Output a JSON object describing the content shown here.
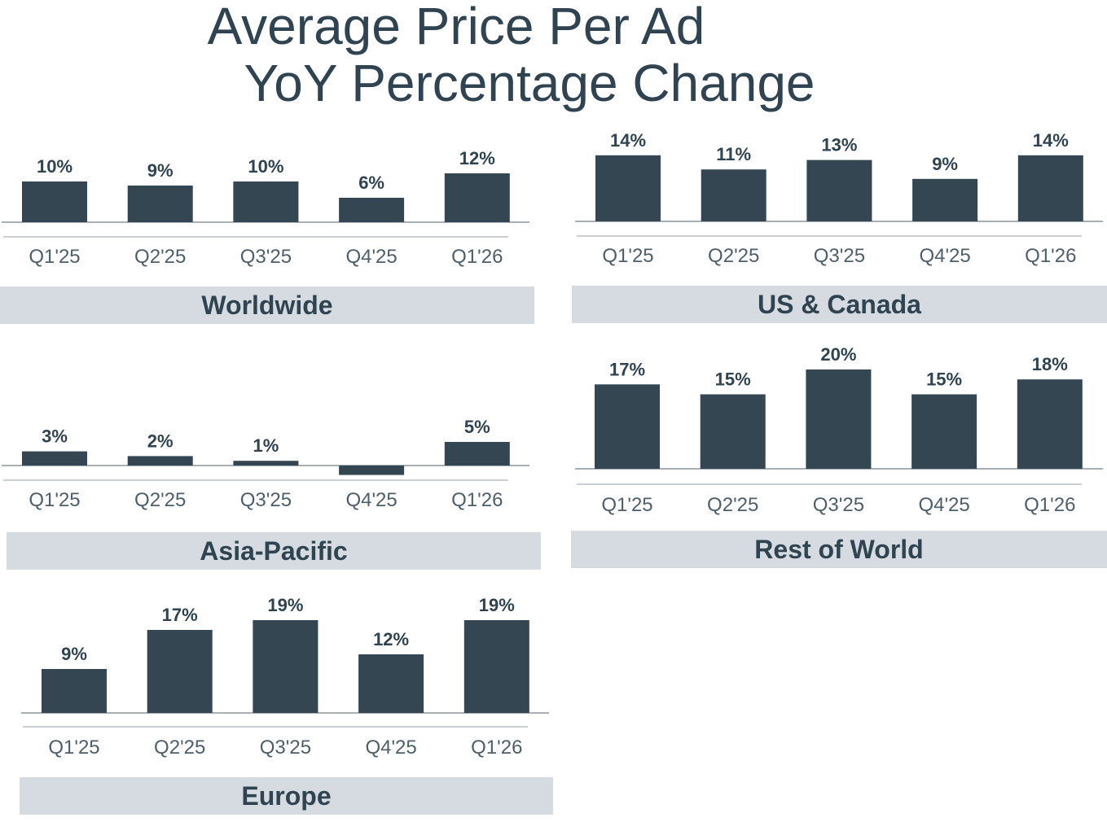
{
  "title": {
    "line1": "Average Price Per Ad",
    "line2": "YoY Percentage Change"
  },
  "colors": {
    "bar": "#334652",
    "region_band": "#d5dbe0",
    "text": "#2f4350"
  },
  "chart_data": [
    {
      "type": "bar",
      "title": "Worldwide",
      "categories": [
        "Q1'25",
        "Q2'25",
        "Q3'25",
        "Q4'25",
        "Q1'26"
      ],
      "values": [
        10,
        9,
        10,
        6,
        12
      ],
      "labels": [
        "10%",
        "9%",
        "10%",
        "6%",
        "12%"
      ],
      "ylim": [
        0,
        14
      ]
    },
    {
      "type": "bar",
      "title": "US & Canada",
      "categories": [
        "Q1'25",
        "Q2'25",
        "Q3'25",
        "Q4'25",
        "Q1'26"
      ],
      "values": [
        14,
        11,
        13,
        9,
        14
      ],
      "labels": [
        "14%",
        "11%",
        "13%",
        "9%",
        "14%"
      ],
      "ylim": [
        0,
        14
      ]
    },
    {
      "type": "bar",
      "title": "Asia-Pacific",
      "categories": [
        "Q1'25",
        "Q2'25",
        "Q3'25",
        "Q4'25",
        "Q1'26"
      ],
      "values": [
        3,
        2,
        1,
        -2,
        5
      ],
      "labels": [
        "3%",
        "2%",
        "1%",
        "",
        "5%"
      ],
      "ylim": [
        -2,
        16
      ]
    },
    {
      "type": "bar",
      "title": "Rest of World",
      "categories": [
        "Q1'25",
        "Q2'25",
        "Q3'25",
        "Q4'25",
        "Q1'26"
      ],
      "values": [
        17,
        15,
        20,
        15,
        18
      ],
      "labels": [
        "17%",
        "15%",
        "20%",
        "15%",
        "18%"
      ],
      "ylim": [
        0,
        20
      ]
    },
    {
      "type": "bar",
      "title": "Europe",
      "categories": [
        "Q1'25",
        "Q2'25",
        "Q3'25",
        "Q4'25",
        "Q1'26"
      ],
      "values": [
        9,
        17,
        19,
        12,
        19
      ],
      "labels": [
        "9%",
        "17%",
        "19%",
        "12%",
        "19%"
      ],
      "ylim": [
        0,
        19
      ]
    }
  ]
}
